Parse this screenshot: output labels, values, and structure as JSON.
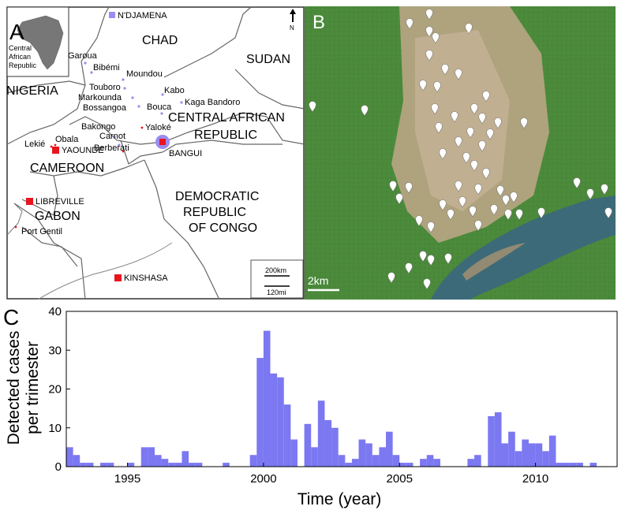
{
  "panels": {
    "a": "A",
    "b": "B",
    "c": "C"
  },
  "mapA": {
    "inset_label": "Central African Republic",
    "inset_lines": [
      "Central",
      "African",
      "Republic"
    ],
    "north": "N",
    "countries": {
      "chad": "CHAD",
      "sudan": "SUDAN",
      "nigeria": "NIGERIA",
      "car_line1": "CENTRAL AFRICAN",
      "car_line2": "REPUBLIC",
      "cameroon": "CAMEROON",
      "gabon": "GABON",
      "drc_line1": "DEMOCRATIC",
      "drc_line2": "REPUBLIC",
      "drc_line3": "OF CONGO"
    },
    "capitals": {
      "ndjamena": "N'DJAMENA",
      "yaounde": "YAOUNDE",
      "libreville": "LIBREVILLE",
      "kinshasa": "KINSHASA",
      "bangui": "BANGUI"
    },
    "towns": {
      "garoua": "Garoua",
      "bibemi": "Bibémi",
      "moundou": "Moundou",
      "touboro": "Touboro",
      "markounda": "Markounda",
      "bossangoa": "Bossangoa",
      "kabo": "Kabo",
      "kaga_bandoro": "Kaga Bandoro",
      "bouca": "Bouca",
      "bakongo": "Bakongo",
      "yaloke": "Yaloké",
      "carnot": "Carnot",
      "berberati": "Berberati",
      "lekie": "Lekié",
      "obala": "Obala",
      "port_gentil": "Port Gentil"
    },
    "scale": {
      "km": "200km",
      "mi": "120mi"
    },
    "colors": {
      "capital": "#e8141e",
      "purple": "#9a8cf0"
    }
  },
  "mapB": {
    "scale": "2km",
    "colors": {
      "river": "#3d6a78",
      "land": "#4a8a3a",
      "urban": "#bfa78a"
    }
  },
  "chart_data": {
    "type": "bar",
    "xlabel": "Time (year)",
    "ylabel_line1": "Detected cases",
    "ylabel_line2": "per trimester",
    "ylim": [
      0,
      40
    ],
    "xlim": [
      1992.75,
      2013.0
    ],
    "yticks": [
      0,
      10,
      20,
      30,
      40
    ],
    "xticks": [
      1995,
      2000,
      2005,
      2010
    ],
    "bar_width_years": 0.25,
    "color": "#7b78f2",
    "x": [
      1992.75,
      1993.0,
      1993.25,
      1993.5,
      1993.75,
      1994.0,
      1994.25,
      1994.5,
      1994.75,
      1995.0,
      1995.25,
      1995.5,
      1995.75,
      1996.0,
      1996.25,
      1996.5,
      1996.75,
      1997.0,
      1997.25,
      1997.5,
      1997.75,
      1998.0,
      1998.25,
      1998.5,
      1998.75,
      1999.0,
      1999.25,
      1999.5,
      1999.75,
      2000.0,
      2000.25,
      2000.5,
      2000.75,
      2001.0,
      2001.25,
      2001.5,
      2001.75,
      2002.0,
      2002.25,
      2002.5,
      2002.75,
      2003.0,
      2003.25,
      2003.5,
      2003.75,
      2004.0,
      2004.25,
      2004.5,
      2004.75,
      2005.0,
      2005.25,
      2005.5,
      2005.75,
      2006.0,
      2006.25,
      2006.5,
      2006.75,
      2007.0,
      2007.25,
      2007.5,
      2007.75,
      2008.0,
      2008.25,
      2008.5,
      2008.75,
      2009.0,
      2009.25,
      2009.5,
      2009.75,
      2010.0,
      2010.25,
      2010.5,
      2010.75,
      2011.0,
      2011.25,
      2011.5,
      2011.75,
      2012.0
    ],
    "values": [
      5,
      3,
      1,
      1,
      0,
      1,
      1,
      0,
      0,
      1,
      0,
      5,
      5,
      3,
      2,
      1,
      1,
      4,
      1,
      1,
      0,
      0,
      0,
      1,
      0,
      0,
      0,
      3,
      28,
      35,
      24,
      23,
      16,
      7,
      0,
      11,
      5,
      17,
      12,
      10,
      3,
      1,
      2,
      7,
      6,
      3,
      5,
      9,
      3,
      1,
      1,
      0,
      2,
      3,
      2,
      0,
      0,
      0,
      0,
      2,
      3,
      0,
      13,
      14,
      6,
      9,
      4,
      7,
      6,
      6,
      4,
      8,
      1,
      1,
      1,
      1,
      0,
      1
    ]
  }
}
